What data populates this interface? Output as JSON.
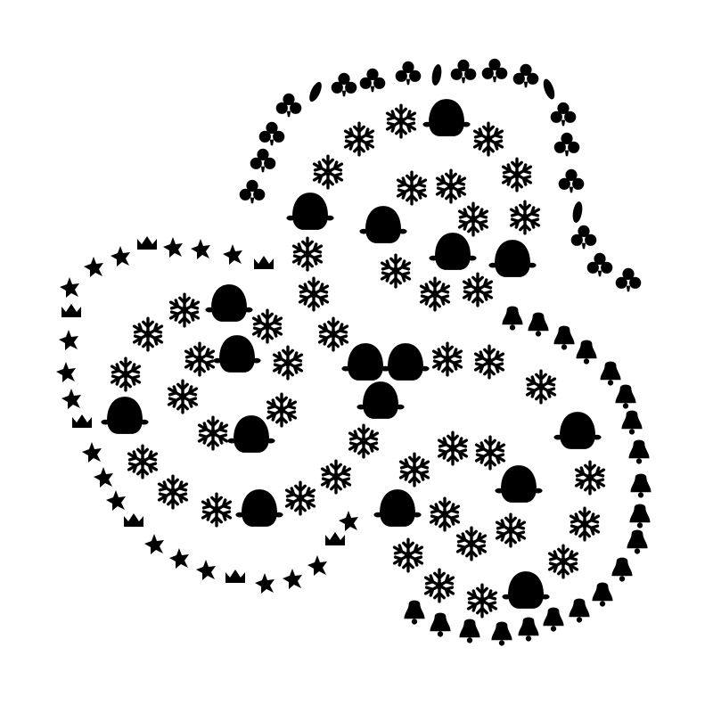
{
  "colors": {
    "ink": "#000000",
    "background": "#ffffff"
  },
  "clusters": [
    {
      "id": "upper-right",
      "border_motif": "trefoil-icon",
      "ring_motifs": [
        "snowflake-icon",
        "penguin-icon"
      ]
    },
    {
      "id": "left",
      "border_motif": "star-crown-icon",
      "ring_motifs": [
        "snowflake-icon",
        "penguin-icon"
      ]
    },
    {
      "id": "lower-right",
      "border_motif": "bell-icon",
      "ring_motifs": [
        "snowflake-icon",
        "penguin-icon"
      ]
    }
  ]
}
